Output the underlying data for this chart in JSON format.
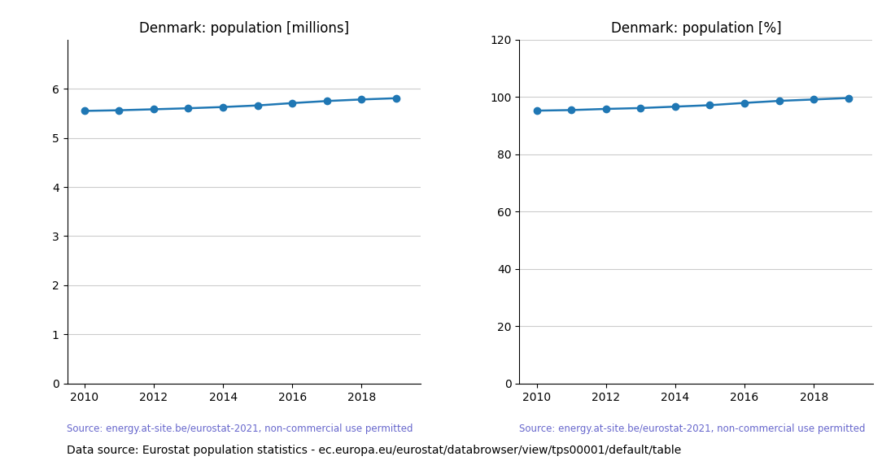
{
  "years": [
    2010,
    2011,
    2012,
    2013,
    2014,
    2015,
    2016,
    2017,
    2018,
    2019
  ],
  "pop_millions": [
    5.548,
    5.561,
    5.581,
    5.602,
    5.627,
    5.659,
    5.707,
    5.749,
    5.781,
    5.806
  ],
  "pop_percent": [
    95.2,
    95.4,
    95.8,
    96.1,
    96.6,
    97.1,
    97.9,
    98.6,
    99.1,
    99.6
  ],
  "title_millions": "Denmark: population [millions]",
  "title_percent": "Denmark: population [%]",
  "source_text": "Source: energy.at-site.be/eurostat-2021, non-commercial use permitted",
  "bottom_text": "Data source: Eurostat population statistics - ec.europa.eu/eurostat/databrowser/view/tps00001/default/table",
  "line_color": "#1f77b4",
  "source_color": "#6666cc",
  "ylim_millions": [
    0,
    7
  ],
  "ylim_percent": [
    0,
    120
  ],
  "yticks_millions": [
    0,
    1,
    2,
    3,
    4,
    5,
    6
  ],
  "yticks_percent": [
    0,
    20,
    40,
    60,
    80,
    100,
    120
  ],
  "xticks": [
    2010,
    2012,
    2014,
    2016,
    2018
  ],
  "marker_size": 6,
  "line_width": 1.8,
  "title_fontsize": 12,
  "tick_fontsize": 10,
  "source_fontsize": 8.5,
  "bottom_fontsize": 10,
  "grid_color": "#cccccc",
  "grid_linewidth": 0.8
}
